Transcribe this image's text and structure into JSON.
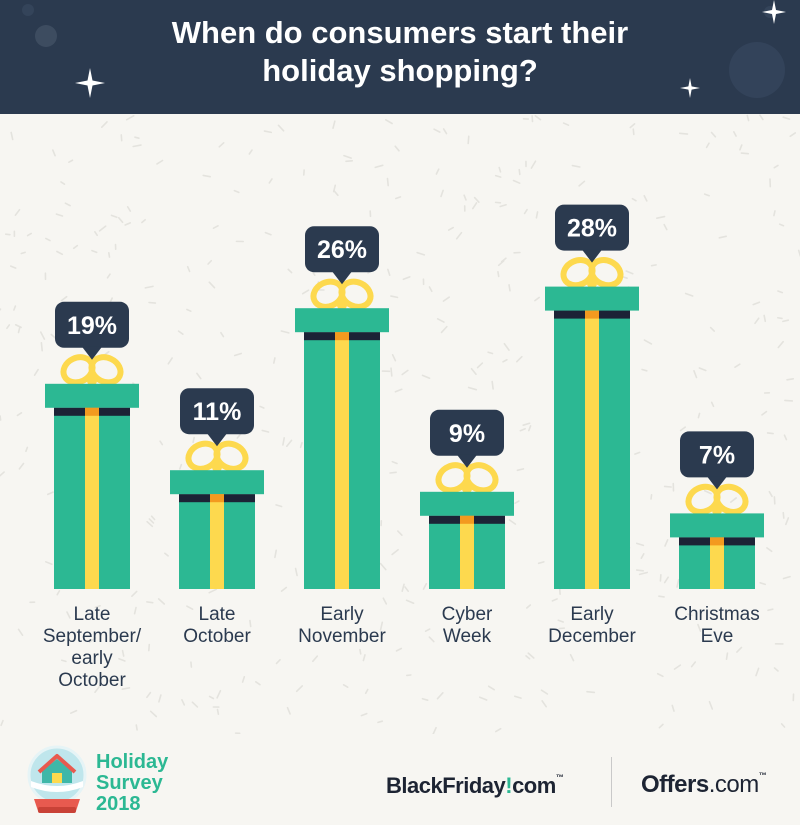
{
  "header": {
    "title_line1": "When do consumers start their",
    "title_line2": "holiday shopping?"
  },
  "chart_data": {
    "type": "bar",
    "title": "When do consumers start their holiday shopping?",
    "categories": [
      [
        "Late",
        "September/",
        "early",
        "October"
      ],
      [
        "Late",
        "October"
      ],
      [
        "Early",
        "November"
      ],
      [
        "Cyber",
        "Week"
      ],
      [
        "Early",
        "December"
      ],
      [
        "Christmas",
        "Eve"
      ]
    ],
    "values": [
      19,
      11,
      26,
      9,
      28,
      7
    ],
    "value_labels": [
      "19%",
      "11%",
      "26%",
      "9%",
      "28%",
      "7%"
    ],
    "unit": "%",
    "ylim": [
      0,
      30
    ],
    "grid": false,
    "legend": "none"
  },
  "footer": {
    "survey_line1": "Holiday",
    "survey_line2": "Survey",
    "survey_line3": "2018",
    "brand1_name": "BlackFriday",
    "brand1_mark": "!",
    "brand1_suffix": "com",
    "brand1_tm": "™",
    "brand2_name": "Offers",
    "brand2_suffix": ".com",
    "brand2_tm": "™"
  },
  "colors": {
    "header_bg": "#2b3a4f",
    "gift_box": "#2cb893",
    "ribbon": "#fdd94e",
    "ribbon_knot": "#f39a1f",
    "band": "#1c2336",
    "bubble": "#2b3a4f",
    "brand_accent": "#2cb893"
  },
  "icons": {
    "header_decoration": "sparkle-icon",
    "survey_logo": "snow-globe-icon",
    "bar_mark": "gift-box-icon",
    "value_callout": "speech-bubble-icon"
  }
}
